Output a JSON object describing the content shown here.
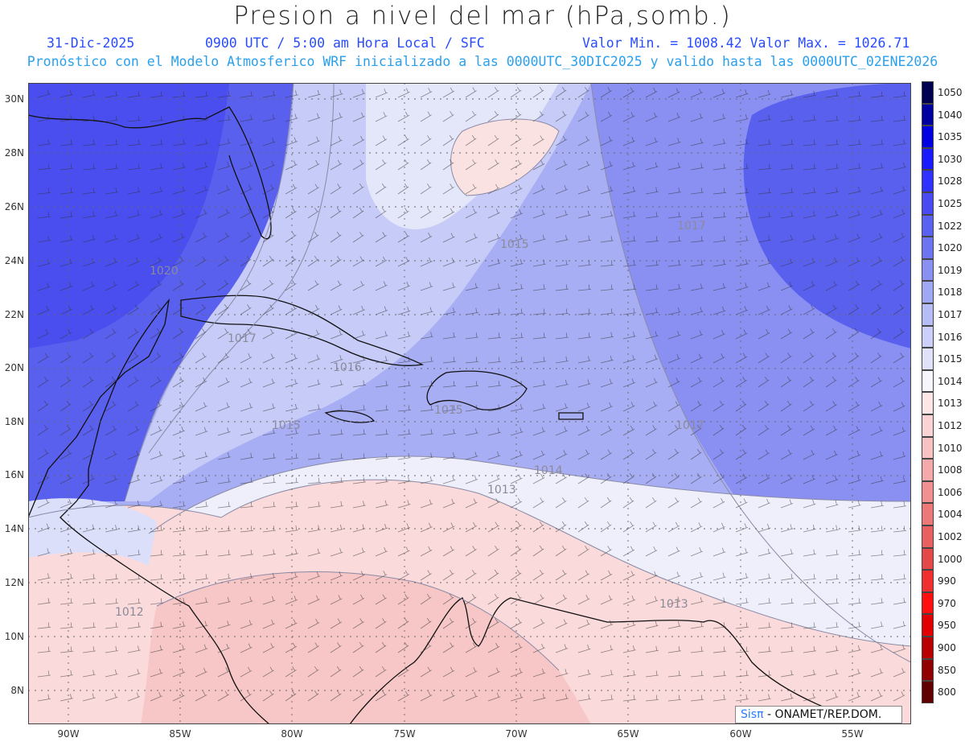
{
  "title": "Presion a nivel del mar (hPa,somb.)",
  "header": {
    "date": "31-Dic-2025",
    "time": "0900 UTC / 5:00 am Hora Local / SFC",
    "min_max": "Valor Min. = 1008.42  Valor Max. = 1026.71"
  },
  "subtitle": "Pronóstico con el Modelo Atmosferico WRF inicializado a las 0000UTC_30DIC2025 y valido hasta las  0000UTC_02ENE2026",
  "lat_labels": [
    "30N",
    "28N",
    "26N",
    "24N",
    "22N",
    "20N",
    "18N",
    "16N",
    "14N",
    "12N",
    "10N",
    "8N"
  ],
  "lon_labels": [
    "90W",
    "85W",
    "80W",
    "75W",
    "70W",
    "65W",
    "60W",
    "55W"
  ],
  "colorbar": {
    "labels": [
      "1050",
      "1040",
      "1035",
      "1030",
      "1028",
      "1025",
      "1022",
      "1020",
      "1019",
      "1018",
      "1017",
      "1016",
      "1015",
      "1014",
      "1013",
      "1012",
      "1010",
      "1008",
      "1006",
      "1004",
      "1002",
      "1000",
      "990",
      "970",
      "950",
      "900",
      "850",
      "800"
    ],
    "colors": [
      "#000050",
      "#0000a0",
      "#0000e0",
      "#1a1aff",
      "#3030ff",
      "#4a4af0",
      "#5a60f0",
      "#6c74f0",
      "#8a90f2",
      "#a0a8f4",
      "#b6bcf6",
      "#cccff8",
      "#e0e2fa",
      "#f6f6fc",
      "#fce6e6",
      "#fad4d4",
      "#f7c2c2",
      "#f4aaaa",
      "#f09090",
      "#ec7878",
      "#e86060",
      "#e44848",
      "#f03030",
      "#ff1010",
      "#e00000",
      "#b80000",
      "#900000",
      "#600000"
    ]
  },
  "contour_labels": [
    "1020",
    "1017",
    "1016",
    "1015",
    "1015",
    "1017",
    "1014",
    "1013",
    "1013",
    "1012",
    "1017",
    "1015"
  ],
  "credit": {
    "sis": "Sisπ",
    "org": "- ONAMET/REP.DOM."
  }
}
